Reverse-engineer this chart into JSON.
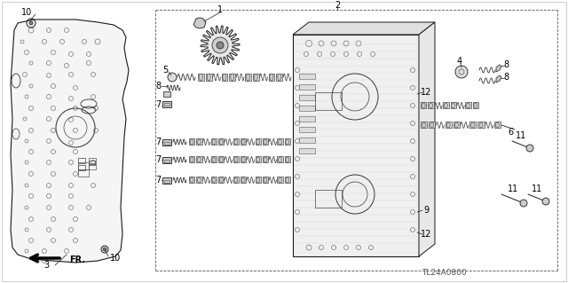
{
  "bg_color": "#ffffff",
  "lc": "#1a1a1a",
  "part_code": "TL24A0800",
  "fig_w": 6.4,
  "fig_h": 3.19,
  "dpi": 100
}
